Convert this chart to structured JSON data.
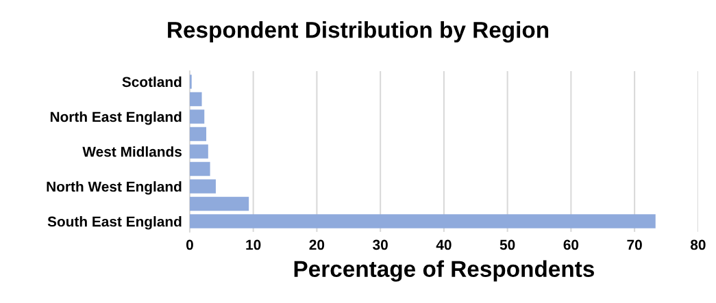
{
  "chart_data": {
    "type": "bar",
    "orientation": "horizontal",
    "title": "Respondent Distribution by Region",
    "xlabel": "Percentage of Respondents",
    "categories": [
      "Scotland",
      null,
      "North East England",
      null,
      "West Midlands",
      null,
      "North West England",
      null,
      "South East England"
    ],
    "values": [
      0.3,
      1.9,
      2.3,
      2.6,
      2.9,
      3.2,
      4.1,
      9.3,
      73.3
    ],
    "color": "#8faadc",
    "xlim": [
      0,
      80
    ],
    "xticks": [
      0,
      10,
      20,
      30,
      40,
      50,
      60,
      70,
      80
    ],
    "grid": "x"
  }
}
